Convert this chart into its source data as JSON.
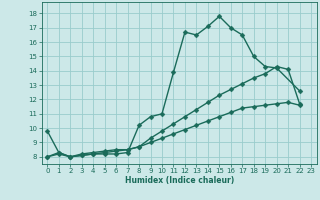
{
  "bg_color": "#cce8e8",
  "grid_color": "#99cccc",
  "line_color": "#1a6b5a",
  "line_width": 1.0,
  "marker_size": 2.5,
  "xlabel": "Humidex (Indice chaleur)",
  "xlim": [
    -0.5,
    23.5
  ],
  "ylim": [
    7.5,
    18.8
  ],
  "yticks": [
    8,
    9,
    10,
    11,
    12,
    13,
    14,
    15,
    16,
    17,
    18
  ],
  "xticks": [
    0,
    1,
    2,
    3,
    4,
    5,
    6,
    7,
    8,
    9,
    10,
    11,
    12,
    13,
    14,
    15,
    16,
    17,
    18,
    19,
    20,
    21,
    22,
    23
  ],
  "series1_x": [
    0,
    1,
    2,
    3,
    4,
    5,
    6,
    7,
    8,
    9,
    10,
    11,
    12,
    13,
    14,
    15,
    16,
    17,
    18,
    19,
    20,
    22
  ],
  "series1_y": [
    9.8,
    8.3,
    8.0,
    8.1,
    8.2,
    8.2,
    8.2,
    8.3,
    10.2,
    10.8,
    11.0,
    13.9,
    16.7,
    16.5,
    17.1,
    17.8,
    17.0,
    16.5,
    15.0,
    14.3,
    14.2,
    12.6
  ],
  "series2_x": [
    0,
    1,
    2,
    3,
    4,
    5,
    6,
    7,
    8,
    9,
    10,
    11,
    12,
    13,
    14,
    15,
    16,
    17,
    18,
    19,
    20,
    21,
    22
  ],
  "series2_y": [
    8.0,
    8.3,
    8.0,
    8.2,
    8.3,
    8.4,
    8.5,
    8.5,
    8.7,
    9.3,
    9.8,
    10.3,
    10.8,
    11.3,
    11.8,
    12.3,
    12.7,
    13.1,
    13.5,
    13.8,
    14.3,
    14.1,
    11.7
  ],
  "series3_x": [
    0,
    1,
    2,
    3,
    4,
    5,
    6,
    7,
    8,
    9,
    10,
    11,
    12,
    13,
    14,
    15,
    16,
    17,
    18,
    19,
    20,
    21,
    22
  ],
  "series3_y": [
    8.0,
    8.2,
    8.0,
    8.1,
    8.2,
    8.3,
    8.4,
    8.5,
    8.7,
    9.0,
    9.3,
    9.6,
    9.9,
    10.2,
    10.5,
    10.8,
    11.1,
    11.4,
    11.5,
    11.6,
    11.7,
    11.8,
    11.6
  ]
}
